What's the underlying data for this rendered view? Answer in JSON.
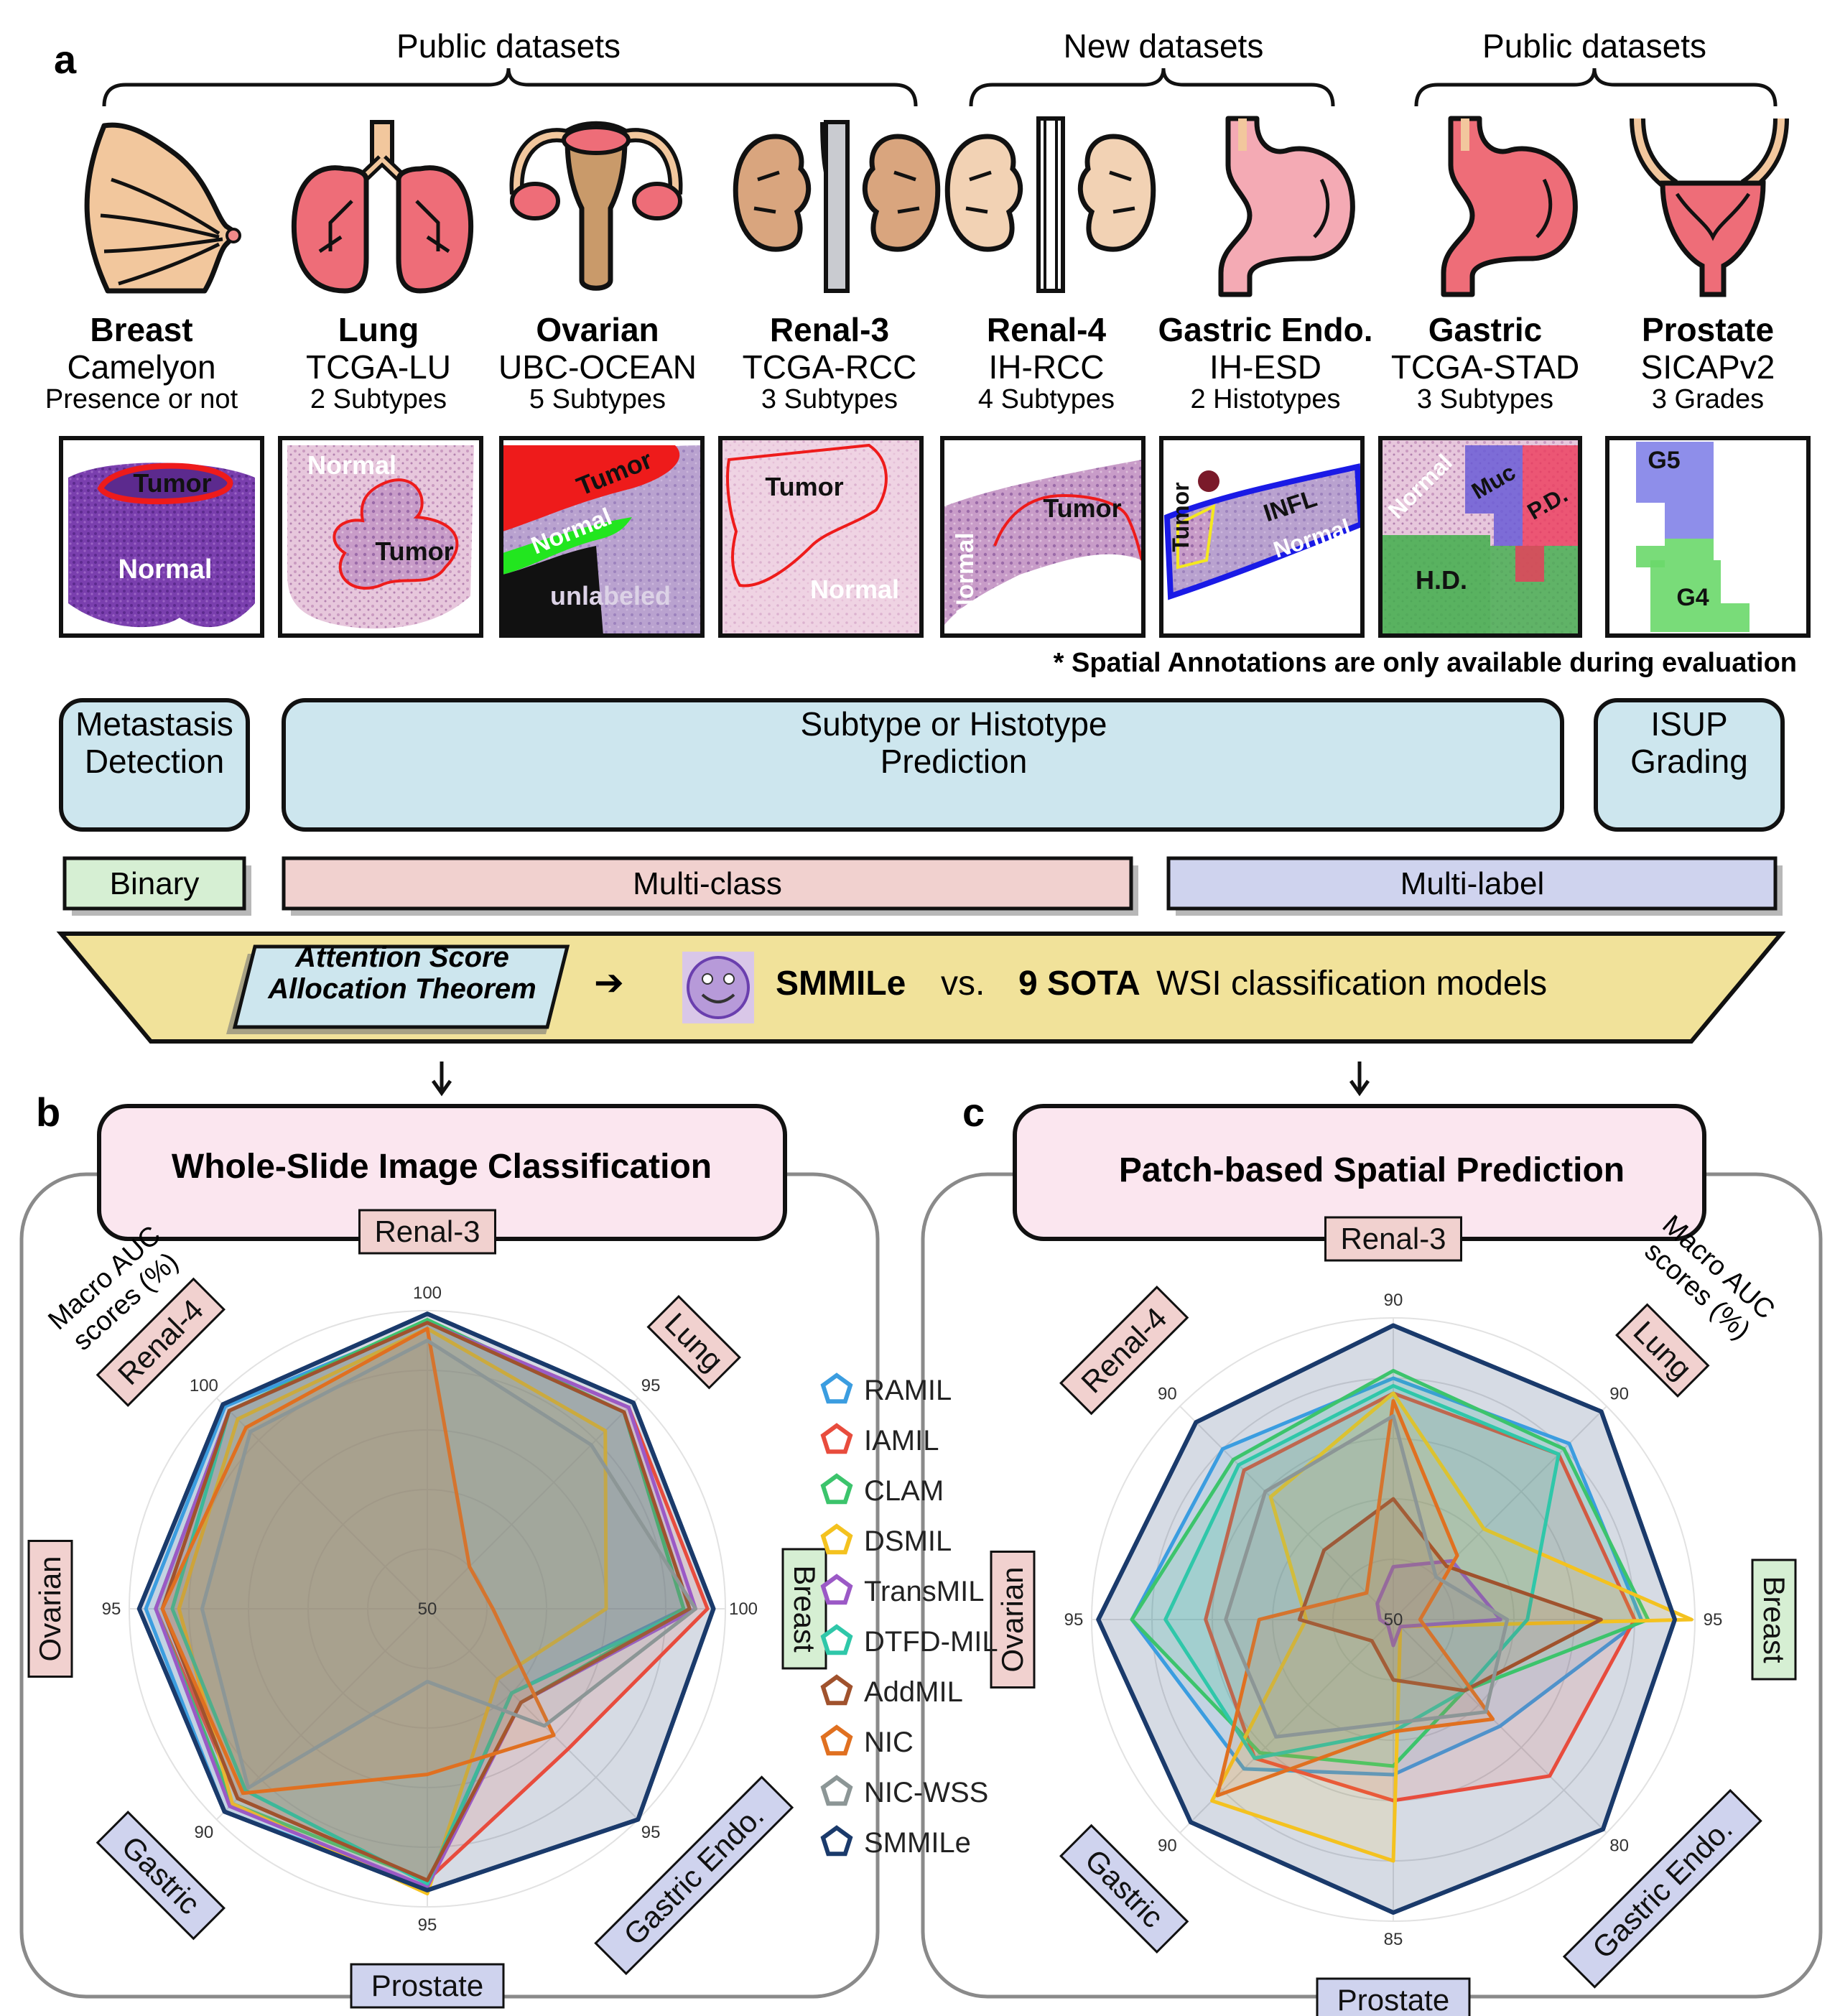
{
  "panel_a": {
    "letter": "a",
    "group_labels": [
      "Public datasets",
      "New datasets",
      "Public datasets"
    ],
    "datasets": [
      {
        "organ": "Breast",
        "name": "Camelyon",
        "task": "Presence or not",
        "regions": [
          "Tumor",
          "Normal"
        ]
      },
      {
        "organ": "Lung",
        "name": "TCGA-LU",
        "task": "2 Subtypes",
        "regions": [
          "Normal",
          "Tumor"
        ]
      },
      {
        "organ": "Ovarian",
        "name": "UBC-OCEAN",
        "task": "5 Subtypes",
        "regions": [
          "Tumor",
          "Normal",
          "unlabeled"
        ]
      },
      {
        "organ": "Renal-3",
        "name": "TCGA-RCC",
        "task": "3 Subtypes",
        "regions": [
          "Tumor",
          "Normal"
        ]
      },
      {
        "organ": "Renal-4",
        "name": "IH-RCC",
        "task": "4 Subtypes",
        "regions": [
          "Normal",
          "Tumor"
        ]
      },
      {
        "organ": "Gastric Endo.",
        "name": "IH-ESD",
        "task": "2 Histotypes",
        "regions": [
          "Tumor",
          "INFL",
          "Normal"
        ]
      },
      {
        "organ": "Gastric",
        "name": "TCGA-STAD",
        "task": "3 Subtypes",
        "regions": [
          "Normal",
          "Muc",
          "P.D.",
          "H.D."
        ]
      },
      {
        "organ": "Prostate",
        "name": "SICAPv2",
        "task": "3 Grades",
        "regions": [
          "G5",
          "G4"
        ]
      }
    ],
    "note": "* Spatial Annotations are only available during evaluation",
    "tasks": {
      "metastasis": "Metastasis\nDetection",
      "subtype": "Subtype or Histotype\nPrediction",
      "isup": "ISUP\nGrading"
    },
    "label_types": {
      "binary": "Binary",
      "multiclass": "Multi-class",
      "multilabel": "Multi-label"
    },
    "banner": {
      "theorem": "Attention Score\nAllocation Theorem",
      "arrow": "➔",
      "smmile": "SMMILe",
      "vs": "vs.",
      "sota": "9 SOTA",
      "rest": "WSI classification models"
    },
    "colors": {
      "task_fill": "#cde6ee",
      "binary_fill": "#d6efd3",
      "multiclass_fill": "#f1d1cf",
      "multilabel_fill": "#cfd3ee",
      "banner_fill": "#f1e29a",
      "header_fill": "#fbe6ef"
    }
  },
  "panel_b": {
    "letter": "b",
    "header": "Whole-Slide Image Classification",
    "metric_label": "Macro AUC\nscores (%)",
    "chart_data": {
      "type": "radar",
      "axes": [
        "Renal-3",
        "Lung",
        "Breast",
        "Gastric Endo.",
        "Prostate",
        "Gastric",
        "Ovarian",
        "Renal-4"
      ],
      "ticks": {
        "center": "50",
        "outer": [
          "100",
          "95",
          "100",
          "95",
          "95",
          "90",
          "95",
          "100"
        ]
      },
      "range_min": [
        50,
        50,
        50,
        50,
        50,
        50,
        50,
        50
      ],
      "range_max": [
        100,
        95,
        100,
        95,
        95,
        90,
        95,
        100
      ],
      "series": [
        {
          "name": "RAMIL",
          "values": [
            98,
            92,
            93,
            68,
            92,
            88.5,
            92.5,
            98
          ]
        },
        {
          "name": "IAMIL",
          "values": [
            98,
            93,
            97,
            80,
            91,
            86,
            91,
            97
          ]
        },
        {
          "name": "CLAM",
          "values": [
            98.5,
            92,
            93,
            70,
            91,
            87,
            91,
            97
          ]
        },
        {
          "name": "DSMIL",
          "values": [
            97,
            88,
            80,
            65,
            93,
            87,
            87.5,
            95
          ]
        },
        {
          "name": "TransMIL",
          "values": [
            98,
            93,
            95,
            70,
            92,
            87.5,
            91,
            97
          ]
        },
        {
          "name": "DTFD-MIL",
          "values": [
            98,
            92,
            94,
            68,
            91.5,
            84.5,
            88.5,
            97
          ]
        },
        {
          "name": "AddMIL",
          "values": [
            98,
            92,
            94,
            70,
            91,
            86,
            90,
            97
          ]
        },
        {
          "name": "NIC",
          "values": [
            97,
            59,
            61,
            77,
            75,
            85,
            90,
            93
          ]
        },
        {
          "name": "NIC-WSS",
          "values": [
            95,
            85,
            95,
            75,
            61,
            84,
            84,
            92
          ]
        },
        {
          "name": "SMMILe",
          "values": [
            99.5,
            94,
            98,
            95,
            92.5,
            88.5,
            93.5,
            98.5
          ]
        }
      ],
      "colors": [
        "#3b9de0",
        "#e84c3d",
        "#3cc46c",
        "#f4c21f",
        "#9b59c6",
        "#2fc7a9",
        "#a0522d",
        "#e07020",
        "#8c9696",
        "#1a3a6b"
      ]
    }
  },
  "panel_c": {
    "letter": "c",
    "header": "Patch-based Spatial Prediction",
    "metric_label": "Macro AUC\nscores (%)",
    "chart_data": {
      "type": "radar",
      "axes": [
        "Renal-3",
        "Lung",
        "Breast",
        "Gastric Endo.",
        "Prostate",
        "Gastric",
        "Ovarian",
        "Renal-4"
      ],
      "ticks": {
        "center": "50",
        "outer": [
          "90",
          "90",
          "95",
          "80",
          "85",
          "90",
          "95",
          "90"
        ]
      },
      "range_min": [
        50,
        50,
        50,
        50,
        50,
        50,
        50,
        50
      ],
      "range_max": [
        90,
        90,
        95,
        80,
        85,
        90,
        95,
        90
      ],
      "series": [
        {
          "name": "RAMIL",
          "values": [
            82,
            83,
            87,
            65,
            68,
            78,
            89,
            82
          ]
        },
        {
          "name": "IAMIL",
          "values": [
            80,
            81,
            86,
            72,
            71,
            76,
            78,
            78
          ]
        },
        {
          "name": "CLAM",
          "values": [
            83,
            82,
            88,
            60,
            67,
            75,
            89,
            80
          ]
        },
        {
          "name": "DSMIL",
          "values": [
            80,
            67,
            94.5,
            51,
            78,
            84,
            63,
            73
          ]
        },
        {
          "name": "TransMIL",
          "values": [
            57,
            61,
            66,
            51,
            53,
            51,
            52,
            53
          ]
        },
        {
          "name": "DTFD-MIL",
          "values": [
            81,
            81,
            70,
            60,
            63,
            76,
            84,
            79
          ]
        },
        {
          "name": "AddMIL",
          "values": [
            66,
            60,
            81,
            60,
            57,
            54,
            64,
            63
          ]
        },
        {
          "name": "NIC",
          "values": [
            79,
            62,
            54,
            64,
            63,
            83,
            70,
            55
          ]
        },
        {
          "name": "NIC-WSS",
          "values": [
            77,
            58,
            67,
            63,
            62,
            72,
            75,
            74
          ]
        },
        {
          "name": "SMMILe",
          "values": [
            89,
            89,
            92,
            79.5,
            84,
            88,
            94,
            87
          ]
        }
      ],
      "colors": [
        "#3b9de0",
        "#e84c3d",
        "#3cc46c",
        "#f4c21f",
        "#9b59c6",
        "#2fc7a9",
        "#a0522d",
        "#e07020",
        "#8c9696",
        "#1a3a6b"
      ]
    }
  },
  "legend": {
    "entries": [
      "RAMIL",
      "IAMIL",
      "CLAM",
      "DSMIL",
      "TransMIL",
      "DTFD-MIL",
      "AddMIL",
      "NIC",
      "NIC-WSS",
      "SMMILe"
    ]
  },
  "icons": [
    "breast-icon",
    "lung-icon",
    "uterus-ovary-icon",
    "kidney-icon",
    "kidney-icon",
    "stomach-icon",
    "stomach-icon",
    "prostate-icon",
    "smmile-logo-icon"
  ]
}
